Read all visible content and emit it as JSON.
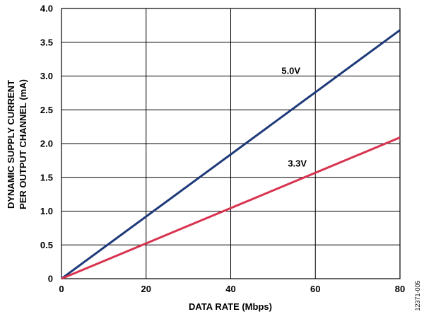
{
  "chart_data": {
    "type": "line",
    "title": "",
    "xlabel": "DATA RATE (Mbps)",
    "ylabel_lines": [
      "DYNAMIC SUPPLY CURRENT",
      "PER OUTPUT CHANNEL (mA)"
    ],
    "xlim": [
      0,
      80
    ],
    "ylim": [
      0,
      4.0
    ],
    "xticks": [
      0,
      20,
      40,
      60,
      80
    ],
    "yticks": [
      0,
      0.5,
      1.0,
      1.5,
      2.0,
      2.5,
      3.0,
      3.5,
      4.0
    ],
    "xtick_labels": [
      "0",
      "20",
      "40",
      "60",
      "80"
    ],
    "ytick_labels": [
      "0",
      "0.5",
      "1.0",
      "1.5",
      "2.0",
      "2.5",
      "3.0",
      "3.5",
      "4.0"
    ],
    "grid": true,
    "series": [
      {
        "name": "5.0V",
        "color": "#1f3a7a",
        "x": [
          0,
          80
        ],
        "y": [
          0,
          3.68
        ]
      },
      {
        "name": "3.3V",
        "color": "#d8334f",
        "x": [
          0,
          80
        ],
        "y": [
          0,
          2.09
        ]
      }
    ]
  },
  "figure_id": "12371-005"
}
